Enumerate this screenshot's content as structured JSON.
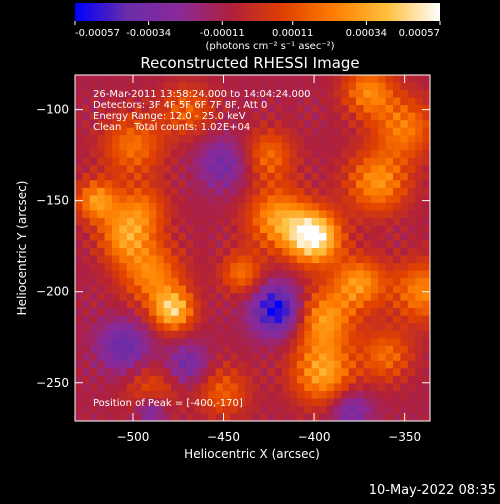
{
  "colorbar": {
    "tick_labels": [
      "-0.00057",
      "-0.00034",
      "-0.00011",
      "0.00011",
      "0.00034",
      "0.00057"
    ],
    "tick_values": [
      -0.00057,
      -0.00034,
      -0.00011,
      0.00011,
      0.00034,
      0.00057
    ],
    "range": [
      -0.00057,
      0.00057
    ],
    "unit_label": "(photons cm⁻² s⁻¹ asec⁻²)",
    "colors": [
      "#0000ff",
      "#6a2ca8",
      "#8a2a9a",
      "#b0203a",
      "#e04000",
      "#ff8000",
      "#ffc040",
      "#ffffff"
    ]
  },
  "annotations": {
    "time": "26-Mar-2011 13:58:24.000 to 14:04:24.000",
    "detectors": "Detectors: 3F 4F 5F 6F 7F 8F, Att 0",
    "energy": "Energy Range: 12.0 - 25.0 keV",
    "clean": "Clean    Total counts: 1.02E+04",
    "peak": "Position of Peak = [-400,-170]"
  },
  "footer_date": "10-May-2022 08:35",
  "chart_data": {
    "type": "heatmap",
    "title": "Reconstructed RHESSI Image",
    "xlabel": "Heliocentric X (arcsec)",
    "ylabel": "Heliocentric Y (arcsec)",
    "xlim": [
      -532,
      -336
    ],
    "ylim": [
      -271,
      -81
    ],
    "xticks": [
      -500,
      -450,
      -400,
      -350
    ],
    "xtick_labels": [
      "−500",
      "−450",
      "−400",
      "−350"
    ],
    "yticks": [
      -100,
      -150,
      -200,
      -250
    ],
    "ytick_labels": [
      "−100",
      "−150",
      "−200",
      "−250"
    ],
    "peak": {
      "x": -400,
      "y": -170
    },
    "background_level": -0.0001,
    "hotspots": [
      {
        "x": -400,
        "y": -170,
        "peak": 0.00057,
        "sigma": 10
      },
      {
        "x": -420,
        "y": -160,
        "peak": 0.0003,
        "sigma": 12
      },
      {
        "x": -478,
        "y": -210,
        "peak": 0.00042,
        "sigma": 8
      },
      {
        "x": -490,
        "y": -190,
        "peak": 0.00025,
        "sigma": 12
      },
      {
        "x": -505,
        "y": -170,
        "peak": 0.00025,
        "sigma": 10
      },
      {
        "x": -520,
        "y": -150,
        "peak": 0.0003,
        "sigma": 8
      },
      {
        "x": -495,
        "y": -155,
        "peak": 0.00018,
        "sigma": 10
      },
      {
        "x": -500,
        "y": -120,
        "peak": 0.0002,
        "sigma": 12
      },
      {
        "x": -470,
        "y": -100,
        "peak": 0.00015,
        "sigma": 10
      },
      {
        "x": -395,
        "y": -215,
        "peak": 0.0003,
        "sigma": 12
      },
      {
        "x": -395,
        "y": -245,
        "peak": 0.00032,
        "sigma": 12
      },
      {
        "x": -375,
        "y": -195,
        "peak": 0.00028,
        "sigma": 10
      },
      {
        "x": -365,
        "y": -140,
        "peak": 0.00028,
        "sigma": 12
      },
      {
        "x": -350,
        "y": -110,
        "peak": 0.00022,
        "sigma": 12
      },
      {
        "x": -370,
        "y": -90,
        "peak": 0.00025,
        "sigma": 10
      },
      {
        "x": -340,
        "y": -200,
        "peak": 0.00025,
        "sigma": 12
      },
      {
        "x": -360,
        "y": -235,
        "peak": 0.00018,
        "sigma": 10
      },
      {
        "x": -425,
        "y": -125,
        "peak": 0.00018,
        "sigma": 10
      },
      {
        "x": -440,
        "y": -190,
        "peak": 0.0002,
        "sigma": 8
      },
      {
        "x": -450,
        "y": -255,
        "peak": 0.00015,
        "sigma": 10
      },
      {
        "x": -490,
        "y": -255,
        "peak": 0.00012,
        "sigma": 10
      }
    ],
    "coldspots": [
      {
        "x": -420,
        "y": -210,
        "depth": 0.0005,
        "sigma": 10
      },
      {
        "x": -505,
        "y": -230,
        "depth": 0.0003,
        "sigma": 10
      },
      {
        "x": -450,
        "y": -130,
        "depth": 0.00025,
        "sigma": 10
      },
      {
        "x": -470,
        "y": -240,
        "depth": 0.00025,
        "sigma": 8
      },
      {
        "x": -490,
        "y": -265,
        "depth": 0.0003,
        "sigma": 6
      },
      {
        "x": -380,
        "y": -265,
        "depth": 0.00025,
        "sigma": 8
      }
    ]
  }
}
